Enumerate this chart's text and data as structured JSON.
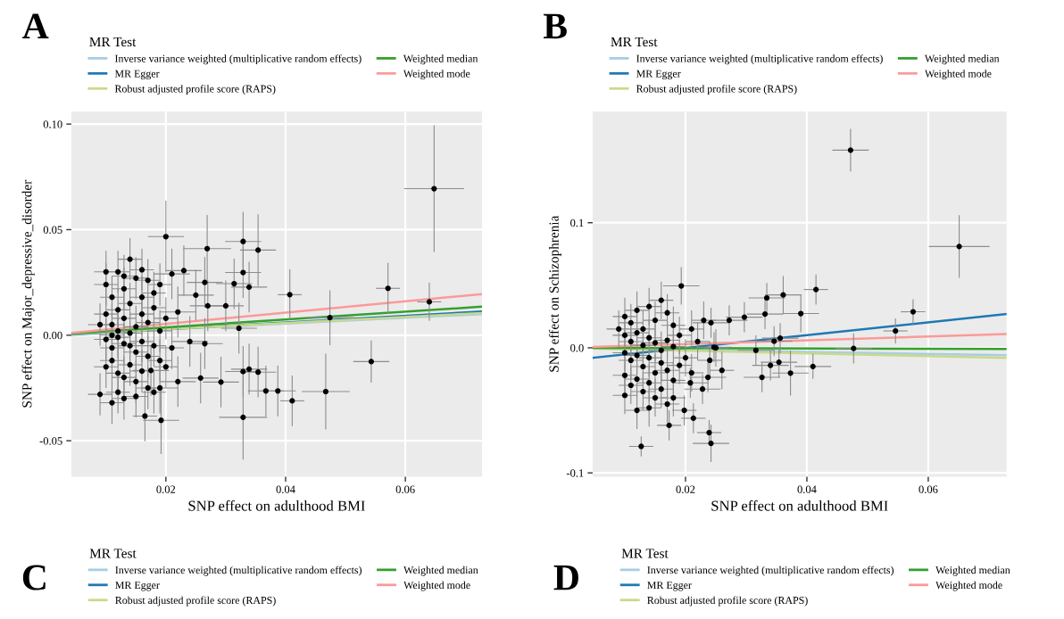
{
  "chart_data": [
    {
      "type": "scatter",
      "title": "A",
      "xlabel": "SNP effect on adulthood BMI",
      "ylabel": "SNP effect on Major_depressive_disorder",
      "legend_title": "MR Test",
      "legend": "top",
      "grid": true,
      "xlim": [
        0.0042,
        0.0728
      ],
      "xticks": [
        {
          "value": 0.02,
          "label": "0.02"
        },
        {
          "value": 0.04,
          "label": "0.04"
        },
        {
          "value": 0.06,
          "label": "0.06"
        }
      ],
      "ylim": [
        -0.067,
        0.106
      ],
      "yticks": [
        {
          "value": -0.05,
          "label": "-0.05"
        },
        {
          "value": 0.0,
          "label": "0.00"
        },
        {
          "value": 0.05,
          "label": "0.05"
        },
        {
          "value": 0.1,
          "label": "0.10"
        }
      ],
      "series": [
        {
          "type": "scatter",
          "color": "#000000",
          "marker": "circle",
          "x": [
            0.0648,
            0.02,
            0.0269,
            0.0329,
            0.0354,
            0.0329,
            0.0339,
            0.0314,
            0.0407,
            0.0571,
            0.064,
            0.0474,
            0.0543,
            0.0467,
            0.0411,
            0.0387,
            0.0367,
            0.0329,
            0.0329,
            0.0339,
            0.0354,
            0.0292,
            0.0258,
            0.0192,
            0.0165,
            0.0322,
            0.03,
            0.027,
            0.0265,
            0.023,
            0.021,
            0.025,
            0.022,
            0.024,
            0.0265,
            0.022,
            0.019,
            0.0175,
            0.01,
            0.011,
            0.012,
            0.013,
            0.014,
            0.015,
            0.016,
            0.017,
            0.018,
            0.01,
            0.011,
            0.012,
            0.013,
            0.014,
            0.015,
            0.016,
            0.017,
            0.018,
            0.019,
            0.01,
            0.011,
            0.012,
            0.013,
            0.014,
            0.015,
            0.016,
            0.017,
            0.018,
            0.019,
            0.01,
            0.011,
            0.012,
            0.013,
            0.014,
            0.015,
            0.016,
            0.017,
            0.009,
            0.011,
            0.012,
            0.013,
            0.015,
            0.014,
            0.012,
            0.016,
            0.019,
            0.02,
            0.021,
            0.02,
            0.018,
            0.01,
            0.013,
            0.009,
            0.011
          ],
          "values": [
            0.0694,
            0.0467,
            0.041,
            0.0444,
            0.0403,
            0.0297,
            0.0228,
            0.0244,
            0.0192,
            0.0222,
            0.0158,
            0.0083,
            -0.0125,
            -0.0267,
            -0.0311,
            -0.0264,
            -0.0264,
            -0.0389,
            -0.0172,
            -0.0161,
            -0.0175,
            -0.0222,
            -0.0203,
            -0.0403,
            -0.0383,
            0.0033,
            0.0139,
            0.0139,
            0.025,
            0.0306,
            0.029,
            0.019,
            0.011,
            -0.003,
            -0.004,
            -0.022,
            -0.025,
            -0.0167,
            0.024,
            0.018,
            0.03,
            0.022,
            0.036,
            0.027,
            0.031,
            0.026,
            0.02,
            0.01,
            0.005,
            0.012,
            0.008,
            0.015,
            0.004,
            0.01,
            0.006,
            0.013,
            0.002,
            -0.002,
            -0.006,
            -0.001,
            -0.004,
            0.001,
            -0.008,
            -0.003,
            -0.01,
            -0.005,
            -0.012,
            -0.015,
            -0.012,
            -0.018,
            -0.02,
            -0.014,
            -0.022,
            -0.017,
            -0.025,
            -0.028,
            -0.032,
            -0.027,
            -0.03,
            -0.029,
            -0.005,
            0.002,
            0.018,
            0.024,
            0.008,
            -0.006,
            -0.015,
            -0.027,
            0.03,
            0.028,
            0.005,
            0.0
          ],
          "xerrors": [
            0.005,
            0.003,
            0.004,
            0.003,
            0.003,
            0.003,
            0.003,
            0.003,
            0.002,
            0.002,
            0.002,
            0.004,
            0.003,
            0.004,
            0.002,
            0.003,
            0.003,
            0.004,
            0.003,
            0.003,
            0.003,
            0.003,
            0.003,
            0.003,
            0.002,
            0.003,
            0.003,
            0.003,
            0.003,
            0.003,
            0.003,
            0.003,
            0.003,
            0.003,
            0.003,
            0.003,
            0.003,
            0.003,
            0.002,
            0.002,
            0.002,
            0.002,
            0.002,
            0.002,
            0.002,
            0.002,
            0.002,
            0.002,
            0.002,
            0.002,
            0.002,
            0.002,
            0.002,
            0.002,
            0.002,
            0.002,
            0.002,
            0.002,
            0.002,
            0.002,
            0.002,
            0.002,
            0.002,
            0.002,
            0.002,
            0.002,
            0.002,
            0.002,
            0.002,
            0.002,
            0.002,
            0.002,
            0.002,
            0.002,
            0.002,
            0.002,
            0.002,
            0.002,
            0.002,
            0.002,
            0.002,
            0.002,
            0.002,
            0.002,
            0.002,
            0.002,
            0.002,
            0.002,
            0.002,
            0.002,
            0.002,
            0.002
          ],
          "errors": [
            0.03,
            0.017,
            0.016,
            0.014,
            0.017,
            0.012,
            0.012,
            0.012,
            0.012,
            0.012,
            0.009,
            0.013,
            0.01,
            0.018,
            0.012,
            0.012,
            0.012,
            0.02,
            0.012,
            0.012,
            0.012,
            0.012,
            0.012,
            0.016,
            0.012,
            0.012,
            0.012,
            0.012,
            0.012,
            0.012,
            0.012,
            0.012,
            0.012,
            0.012,
            0.012,
            0.012,
            0.012,
            0.012,
            0.01,
            0.01,
            0.01,
            0.01,
            0.01,
            0.01,
            0.01,
            0.01,
            0.01,
            0.01,
            0.01,
            0.01,
            0.01,
            0.01,
            0.01,
            0.01,
            0.01,
            0.01,
            0.01,
            0.01,
            0.01,
            0.01,
            0.01,
            0.01,
            0.01,
            0.01,
            0.01,
            0.01,
            0.01,
            0.01,
            0.01,
            0.01,
            0.01,
            0.01,
            0.01,
            0.01,
            0.01,
            0.01,
            0.01,
            0.01,
            0.01,
            0.01,
            0.01,
            0.01,
            0.01,
            0.01,
            0.01,
            0.01,
            0.01,
            0.01,
            0.01,
            0.01,
            0.01,
            0.01
          ]
        },
        {
          "type": "line",
          "name": "Inverse variance weighted (multiplicative random effects)",
          "color": "#a6cee3",
          "x": [
            0.0042,
            0.0728
          ],
          "values": [
            0.0006,
            0.01
          ]
        },
        {
          "type": "line",
          "name": "MR Egger",
          "color": "#1f78b4",
          "x": [
            0.0042,
            0.0728
          ],
          "values": [
            0.0003,
            0.0112
          ]
        },
        {
          "type": "line",
          "name": "Robust adjusted profile score (RAPS)",
          "color": "#c9d98a",
          "x": [
            0.0042,
            0.0728
          ],
          "values": [
            0.0006,
            0.0105
          ]
        },
        {
          "type": "line",
          "name": "Weighted median",
          "color": "#33a02c",
          "x": [
            0.0042,
            0.0728
          ],
          "values": [
            0.0008,
            0.0135
          ]
        },
        {
          "type": "line",
          "name": "Weighted mode",
          "color": "#fb9a99",
          "x": [
            0.0042,
            0.0728
          ],
          "values": [
            0.0011,
            0.0195
          ]
        }
      ]
    },
    {
      "type": "scatter",
      "title": "B",
      "xlabel": "SNP effect on adulthood BMI",
      "ylabel": "SNP effect on Schizophrenia",
      "legend_title": "MR Test",
      "legend": "top",
      "grid": true,
      "xlim": [
        0.0047,
        0.0729
      ],
      "xticks": [
        {
          "value": 0.02,
          "label": "0.02"
        },
        {
          "value": 0.04,
          "label": "0.04"
        },
        {
          "value": 0.06,
          "label": "0.06"
        }
      ],
      "ylim": [
        -0.103,
        0.189
      ],
      "yticks": [
        {
          "value": -0.1,
          "label": "-0.1"
        },
        {
          "value": 0.0,
          "label": "0.0"
        },
        0.1
      ],
      "series": [
        {
          "type": "scatter",
          "color": "#000000",
          "marker": "circle",
          "x": [
            0.0472,
            0.0651,
            0.0193,
            0.0415,
            0.0361,
            0.0334,
            0.039,
            0.0575,
            0.0546,
            0.0477,
            0.041,
            0.0373,
            0.0354,
            0.034,
            0.0326,
            0.0239,
            0.0242,
            0.0127,
            0.0173,
            0.0213,
            0.0198,
            0.0331,
            0.0297,
            0.0272,
            0.0346,
            0.0316,
            0.0356,
            0.0242,
            0.0247,
            0.0237,
            0.0228,
            0.0208,
            0.01,
            0.011,
            0.012,
            0.013,
            0.014,
            0.015,
            0.016,
            0.017,
            0.018,
            0.01,
            0.011,
            0.012,
            0.013,
            0.014,
            0.015,
            0.016,
            0.017,
            0.018,
            0.019,
            0.01,
            0.011,
            0.012,
            0.013,
            0.014,
            0.015,
            0.016,
            0.017,
            0.018,
            0.019,
            0.01,
            0.011,
            0.012,
            0.013,
            0.014,
            0.015,
            0.016,
            0.017,
            0.01,
            0.012,
            0.014,
            0.018,
            0.021,
            0.022,
            0.02,
            0.021,
            0.023,
            0.024,
            0.025,
            0.026,
            0.009
          ],
          "values": [
            0.158,
            0.081,
            0.0495,
            0.0466,
            0.0423,
            0.0399,
            0.0274,
            0.0288,
            0.0135,
            -0.0005,
            -0.0149,
            -0.0202,
            -0.0115,
            -0.014,
            -0.0236,
            -0.0678,
            -0.0764,
            -0.0788,
            -0.062,
            -0.0563,
            -0.05,
            0.027,
            0.0245,
            0.022,
            0.0053,
            -0.002,
            0.0077,
            0.02,
            0.0005,
            -0.0236,
            -0.033,
            -0.028,
            0.025,
            0.02,
            0.03,
            0.015,
            0.033,
            0.022,
            0.038,
            0.028,
            0.018,
            0.01,
            0.005,
            0.012,
            0.002,
            0.008,
            0.004,
            -0.002,
            0.006,
            0.001,
            0.01,
            -0.004,
            -0.01,
            -0.006,
            -0.015,
            -0.008,
            -0.02,
            -0.012,
            -0.018,
            -0.026,
            -0.014,
            -0.022,
            -0.03,
            -0.025,
            -0.035,
            -0.028,
            -0.04,
            -0.033,
            -0.045,
            -0.038,
            -0.05,
            -0.048,
            -0.04,
            0.015,
            0.005,
            -0.008,
            -0.02,
            0.022,
            -0.01,
            0.0,
            -0.018,
            0.015
          ],
          "xerrors": [
            0.003,
            0.005,
            0.003,
            0.002,
            0.003,
            0.003,
            0.003,
            0.002,
            0.002,
            0.003,
            0.003,
            0.003,
            0.003,
            0.003,
            0.003,
            0.002,
            0.003,
            0.002,
            0.002,
            0.002,
            0.002,
            0.003,
            0.003,
            0.003,
            0.003,
            0.003,
            0.003,
            0.003,
            0.003,
            0.003,
            0.003,
            0.003,
            0.002,
            0.002,
            0.002,
            0.002,
            0.002,
            0.002,
            0.002,
            0.002,
            0.002,
            0.002,
            0.002,
            0.002,
            0.002,
            0.002,
            0.002,
            0.002,
            0.002,
            0.002,
            0.002,
            0.002,
            0.002,
            0.002,
            0.002,
            0.002,
            0.002,
            0.002,
            0.002,
            0.002,
            0.002,
            0.002,
            0.002,
            0.002,
            0.002,
            0.002,
            0.002,
            0.002,
            0.002,
            0.002,
            0.002,
            0.002,
            0.002,
            0.002,
            0.002,
            0.002,
            0.002,
            0.002,
            0.002,
            0.002,
            0.002,
            0.002
          ],
          "errors": [
            0.017,
            0.025,
            0.015,
            0.012,
            0.015,
            0.012,
            0.015,
            0.01,
            0.01,
            0.012,
            0.01,
            0.018,
            0.012,
            0.012,
            0.012,
            0.01,
            0.015,
            0.008,
            0.012,
            0.012,
            0.012,
            0.012,
            0.012,
            0.012,
            0.012,
            0.012,
            0.012,
            0.012,
            0.012,
            0.012,
            0.012,
            0.012,
            0.015,
            0.015,
            0.015,
            0.015,
            0.015,
            0.015,
            0.015,
            0.015,
            0.015,
            0.015,
            0.015,
            0.015,
            0.015,
            0.015,
            0.015,
            0.015,
            0.015,
            0.015,
            0.015,
            0.015,
            0.015,
            0.015,
            0.015,
            0.015,
            0.015,
            0.015,
            0.015,
            0.015,
            0.015,
            0.015,
            0.015,
            0.015,
            0.015,
            0.015,
            0.015,
            0.015,
            0.015,
            0.015,
            0.015,
            0.015,
            0.015,
            0.015,
            0.015,
            0.015,
            0.015,
            0.015,
            0.015,
            0.015,
            0.015,
            0.015
          ]
        },
        {
          "type": "line",
          "name": "Inverse variance weighted (multiplicative random effects)",
          "color": "#a6cee3",
          "x": [
            0.0047,
            0.0729
          ],
          "values": [
            -0.0005,
            -0.006
          ]
        },
        {
          "type": "line",
          "name": "MR Egger",
          "color": "#1f78b4",
          "x": [
            0.0047,
            0.0729
          ],
          "values": [
            -0.008,
            0.027
          ]
        },
        {
          "type": "line",
          "name": "Robust adjusted profile score (RAPS)",
          "color": "#c9d98a",
          "x": [
            0.0047,
            0.0729
          ],
          "values": [
            -0.0006,
            -0.008
          ]
        },
        {
          "type": "line",
          "name": "Weighted median",
          "color": "#33a02c",
          "x": [
            0.0047,
            0.0729
          ],
          "values": [
            0.0,
            -0.001
          ]
        },
        {
          "type": "line",
          "name": "Weighted mode",
          "color": "#fb9a99",
          "x": [
            0.0047,
            0.0729
          ],
          "values": [
            0.0007,
            0.011
          ]
        }
      ]
    },
    {
      "type": "other",
      "title": "C",
      "legend_title": "MR Test",
      "legend": "top",
      "series": [
        {
          "name": "Inverse variance weighted (multiplicative random effects)",
          "color": "#a6cee3"
        },
        {
          "name": "MR Egger",
          "color": "#1f78b4"
        },
        {
          "name": "Robust adjusted profile score (RAPS)",
          "color": "#c9d98a"
        },
        {
          "name": "Weighted median",
          "color": "#33a02c"
        },
        {
          "name": "Weighted mode",
          "color": "#fb9a99"
        }
      ]
    },
    {
      "type": "other",
      "title": "D",
      "legend_title": "MR Test",
      "legend": "top",
      "series": [
        {
          "name": "Inverse variance weighted (multiplicative random effects)",
          "color": "#a6cee3"
        },
        {
          "name": "MR Egger",
          "color": "#1f78b4"
        },
        {
          "name": "Robust adjusted profile score (RAPS)",
          "color": "#c9d98a"
        },
        {
          "name": "Weighted median",
          "color": "#33a02c"
        },
        {
          "name": "Weighted mode",
          "color": "#fb9a99"
        }
      ]
    }
  ]
}
